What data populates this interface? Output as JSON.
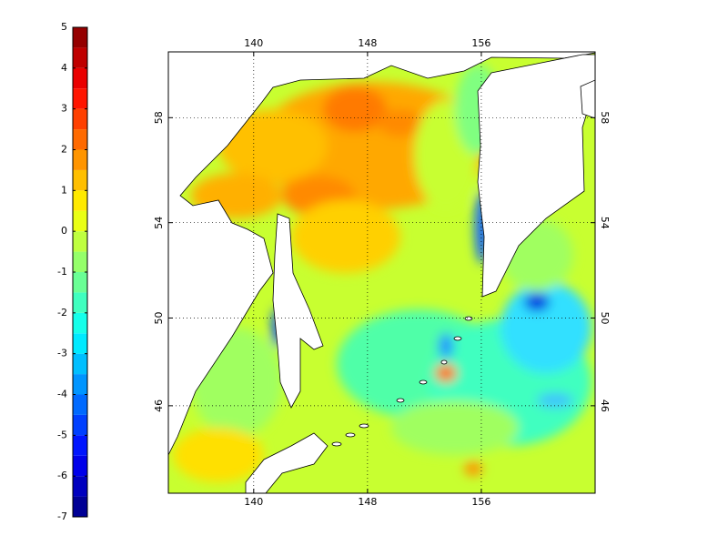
{
  "colorbar": {
    "lim": [
      -7,
      5
    ],
    "ticks": [
      5,
      4,
      3,
      2,
      1,
      0,
      -1,
      -2,
      -3,
      -4,
      -5,
      -6,
      -7
    ]
  },
  "map": {
    "lonlim": [
      134,
      164
    ],
    "latlim": [
      41.7,
      60.3
    ],
    "lon_ticks": [
      140,
      148,
      156
    ],
    "lat_ticks": [
      46,
      50,
      54,
      58
    ],
    "grid": true
  }
}
